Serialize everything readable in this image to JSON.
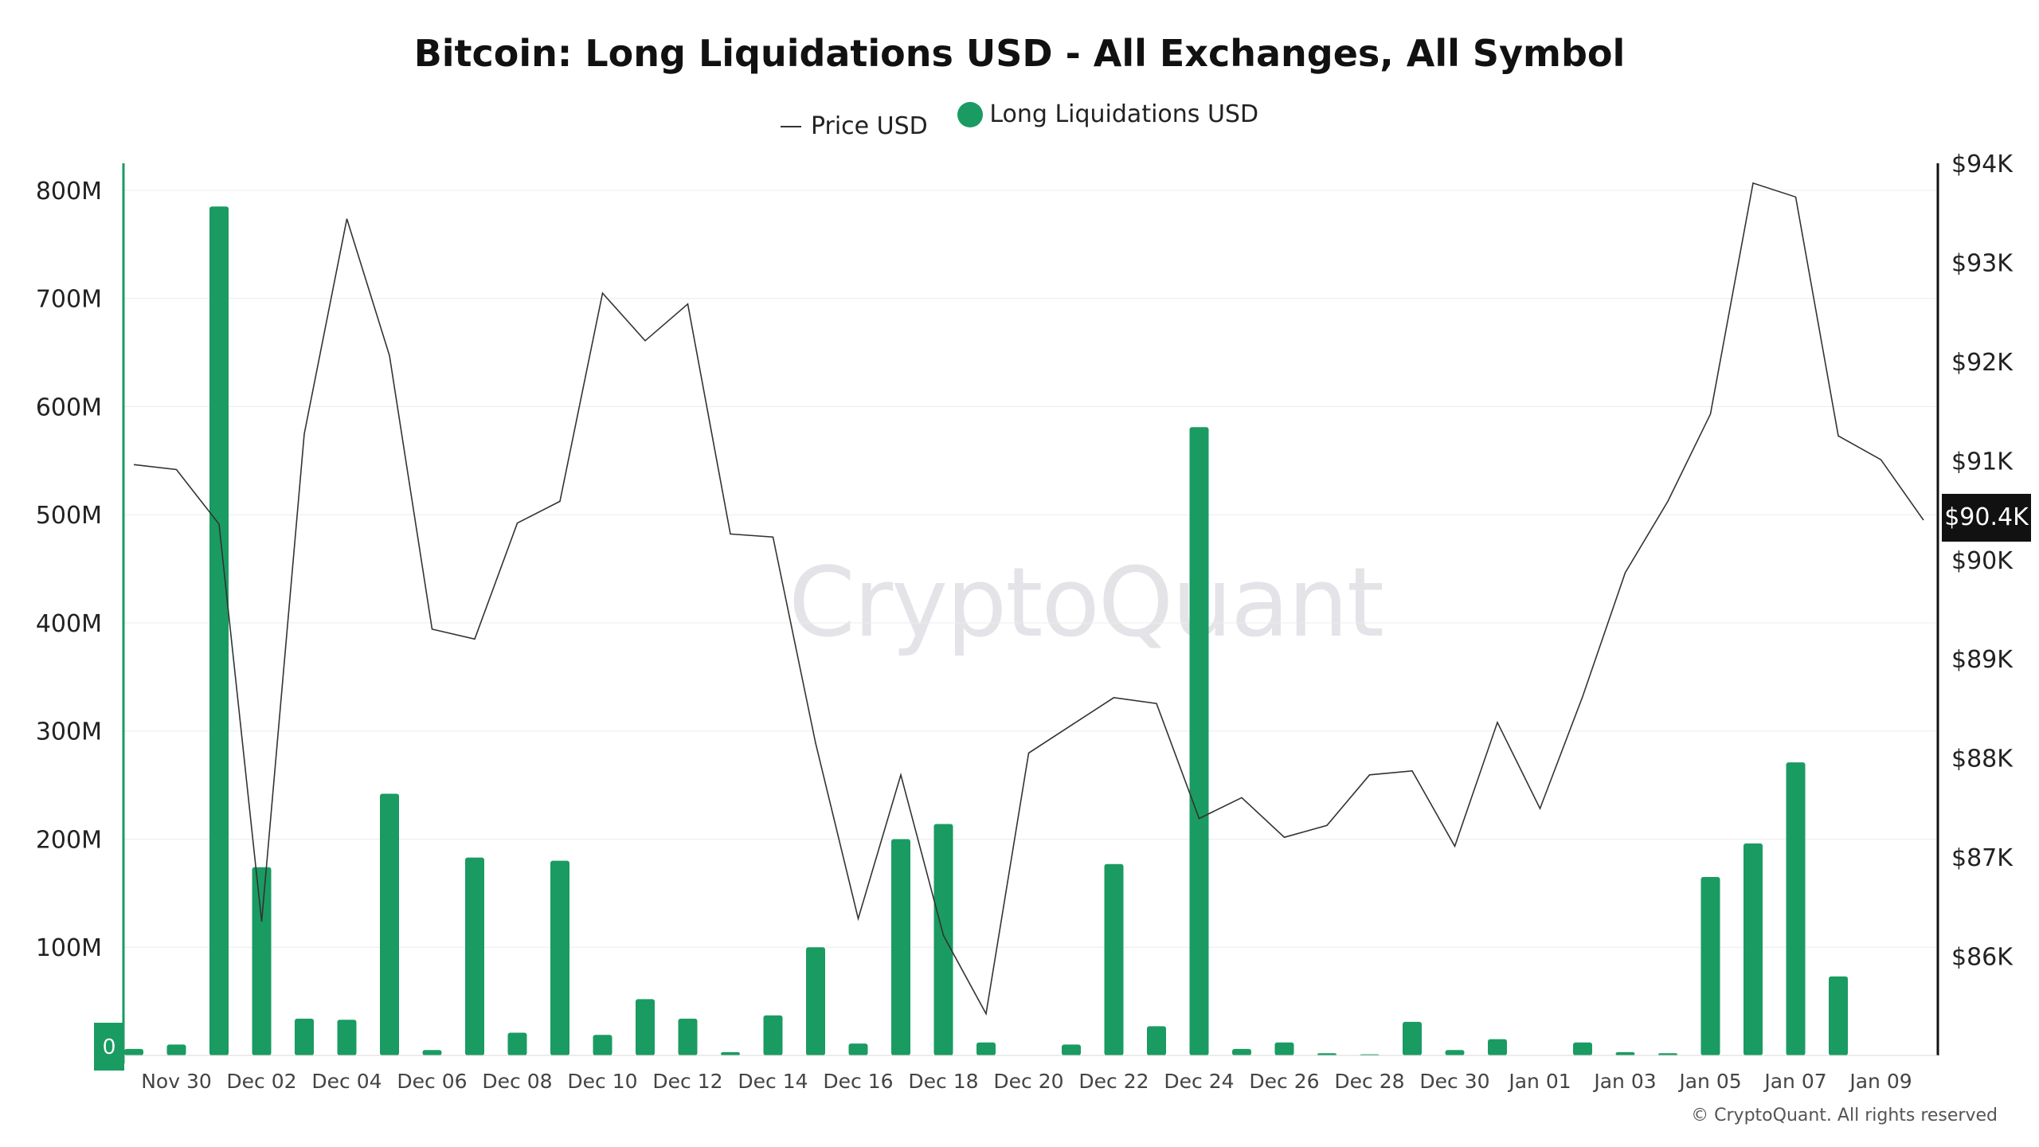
{
  "chart_data": {
    "type": "bar",
    "title": "Bitcoin: Long Liquidations USD - All Exchanges, All Symbol",
    "series": [
      {
        "name": "Price USD",
        "type": "line",
        "axis": "right",
        "color": "#333333",
        "values": [
          90960,
          90910,
          90360,
          86350,
          91270,
          93440,
          92060,
          89300,
          89200,
          90370,
          90590,
          92690,
          92210,
          92580,
          90260,
          90230,
          88150,
          86380,
          87830,
          86210,
          85420,
          88050,
          88330,
          88610,
          88550,
          87390,
          87600,
          87200,
          87320,
          87830,
          87870,
          87110,
          88360,
          87490,
          88620,
          89870,
          90590,
          91470,
          93800,
          93660,
          91250,
          91010,
          90400
        ]
      },
      {
        "name": "Long Liquidations USD",
        "type": "bar",
        "axis": "left",
        "color": "#1a9b62",
        "values": [
          6000000,
          10000000,
          785000000,
          174000000,
          34000000,
          33000000,
          242000000,
          5000000,
          183000000,
          21000000,
          180000000,
          19000000,
          52000000,
          34000000,
          3000000,
          37000000,
          100000000,
          11000000,
          200000000,
          214000000,
          12000000,
          0,
          10000000,
          177000000,
          27000000,
          581000000,
          6000000,
          12000000,
          2000000,
          1000000,
          31000000,
          5000000,
          15000000,
          0,
          12000000,
          3000000,
          2000000,
          165000000,
          196000000,
          271000000,
          73000000,
          0,
          0
        ]
      }
    ],
    "x": [
      "Nov 29",
      "Nov 30",
      "Dec 01",
      "Dec 02",
      "Dec 03",
      "Dec 04",
      "Dec 05",
      "Dec 06",
      "Dec 07",
      "Dec 08",
      "Dec 09",
      "Dec 10",
      "Dec 11",
      "Dec 12",
      "Dec 13",
      "Dec 14",
      "Dec 15",
      "Dec 16",
      "Dec 17",
      "Dec 18",
      "Dec 19",
      "Dec 20",
      "Dec 21",
      "Dec 22",
      "Dec 23",
      "Dec 24",
      "Dec 25",
      "Dec 26",
      "Dec 27",
      "Dec 28",
      "Dec 29",
      "Dec 30",
      "Dec 31",
      "Jan 01",
      "Jan 02",
      "Jan 03",
      "Jan 04",
      "Jan 05",
      "Jan 06",
      "Jan 07",
      "Jan 08",
      "Jan 09",
      "Jan 10"
    ],
    "x_tick_labels": [
      "Nov 30",
      "Dec 02",
      "Dec 04",
      "Dec 06",
      "Dec 08",
      "Dec 10",
      "Dec 12",
      "Dec 14",
      "Dec 16",
      "Dec 18",
      "Dec 20",
      "Dec 22",
      "Dec 24",
      "Dec 26",
      "Dec 28",
      "Dec 30",
      "Jan 01",
      "Jan 03",
      "Jan 05",
      "Jan 07",
      "Jan 09"
    ],
    "y_left": {
      "ticks": [
        0,
        100000000,
        200000000,
        300000000,
        400000000,
        500000000,
        600000000,
        700000000,
        800000000
      ],
      "tick_labels": [
        "0",
        "100M",
        "200M",
        "300M",
        "400M",
        "500M",
        "600M",
        "700M",
        "800M"
      ],
      "range": [
        0,
        825000000
      ],
      "color": "#1a9b62"
    },
    "y_right": {
      "ticks": [
        86000,
        87000,
        88000,
        89000,
        90000,
        91000,
        92000,
        93000,
        94000
      ],
      "tick_labels": [
        "$86K",
        "$87K",
        "$88K",
        "$89K",
        "$90K",
        "$91K",
        "$92K",
        "$93K",
        "$94K"
      ],
      "range": [
        85000,
        94000
      ],
      "color": "#111111"
    },
    "current_price": {
      "value": 90400,
      "label": "$90.4K"
    },
    "grid": true,
    "legend_position": "top-center"
  },
  "legend": {
    "price_label": "Price USD",
    "liq_label": "Long Liquidations USD"
  },
  "watermark": "CryptoQuant",
  "copyright": "© CryptoQuant. All rights reserved"
}
